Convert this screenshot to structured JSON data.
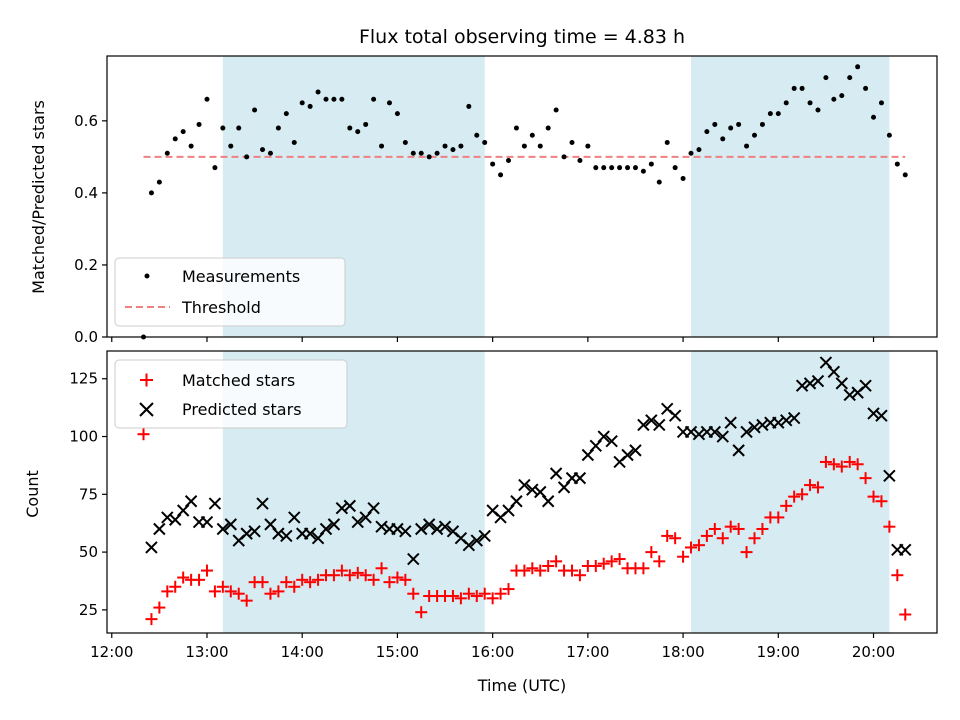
{
  "chart_data": {
    "title": "Flux total observing time = 4.83 h",
    "shaded_intervals": [
      [
        "13:10",
        "15:55"
      ],
      [
        "18:05",
        "20:10"
      ]
    ],
    "x_axis": {
      "label": "Time (UTC)",
      "ticks": [
        "12:00",
        "13:00",
        "14:00",
        "15:00",
        "16:00",
        "17:00",
        "18:00",
        "19:00",
        "20:00"
      ],
      "range": [
        "11:57",
        "20:40"
      ]
    },
    "panels": [
      {
        "type": "scatter",
        "ylabel": "Matched/Predicted stars",
        "ylim": [
          0,
          0.78
        ],
        "yticks": [
          "0.0",
          "0.2",
          "0.4",
          "0.6"
        ],
        "legend": {
          "placement": "lower-left",
          "entries": [
            "Measurements",
            "Threshold"
          ]
        },
        "threshold": {
          "name": "Threshold",
          "value": 0.5,
          "x_range": [
            "12:20",
            "20:20"
          ],
          "color": "#f08080"
        },
        "series": [
          {
            "name": "Measurements",
            "color": "#000000",
            "x": [
              "12:20",
              "12:25",
              "12:30",
              "12:35",
              "12:40",
              "12:45",
              "12:50",
              "12:55",
              "13:00",
              "13:05",
              "13:10",
              "13:15",
              "13:20",
              "13:25",
              "13:30",
              "13:35",
              "13:40",
              "13:45",
              "13:50",
              "13:55",
              "14:00",
              "14:05",
              "14:10",
              "14:15",
              "14:20",
              "14:25",
              "14:30",
              "14:35",
              "14:40",
              "14:45",
              "14:50",
              "14:55",
              "15:00",
              "15:05",
              "15:10",
              "15:15",
              "15:20",
              "15:25",
              "15:30",
              "15:35",
              "15:40",
              "15:45",
              "15:50",
              "15:55",
              "16:00",
              "16:05",
              "16:10",
              "16:15",
              "16:20",
              "16:25",
              "16:30",
              "16:35",
              "16:40",
              "16:45",
              "16:50",
              "16:55",
              "17:00",
              "17:05",
              "17:10",
              "17:15",
              "17:20",
              "17:25",
              "17:30",
              "17:35",
              "17:40",
              "17:45",
              "17:50",
              "17:55",
              "18:00",
              "18:05",
              "18:10",
              "18:15",
              "18:20",
              "18:25",
              "18:30",
              "18:35",
              "18:40",
              "18:45",
              "18:50",
              "18:55",
              "19:00",
              "19:05",
              "19:10",
              "19:15",
              "19:20",
              "19:25",
              "19:30",
              "19:35",
              "19:40",
              "19:45",
              "19:50",
              "19:55",
              "20:00",
              "20:05",
              "20:10",
              "20:15",
              "20:20"
            ],
            "y": [
              0.0,
              0.4,
              0.43,
              0.51,
              0.55,
              0.57,
              0.53,
              0.59,
              0.66,
              0.47,
              0.58,
              0.53,
              0.58,
              0.5,
              0.63,
              0.52,
              0.51,
              0.58,
              0.62,
              0.54,
              0.65,
              0.64,
              0.68,
              0.66,
              0.66,
              0.66,
              0.58,
              0.57,
              0.59,
              0.66,
              0.53,
              0.65,
              0.62,
              0.54,
              0.51,
              0.51,
              0.5,
              0.51,
              0.53,
              0.52,
              0.53,
              0.64,
              0.56,
              0.54,
              0.48,
              0.45,
              0.49,
              0.58,
              0.53,
              0.56,
              0.53,
              0.58,
              0.63,
              0.5,
              0.54,
              0.49,
              0.53,
              0.47,
              0.47,
              0.47,
              0.47,
              0.47,
              0.47,
              0.46,
              0.48,
              0.43,
              0.54,
              0.47,
              0.44,
              0.51,
              0.52,
              0.57,
              0.59,
              0.55,
              0.58,
              0.59,
              0.53,
              0.56,
              0.59,
              0.62,
              0.62,
              0.65,
              0.69,
              0.69,
              0.65,
              0.63,
              0.72,
              0.66,
              0.67,
              0.72,
              0.75,
              0.69,
              0.61,
              0.65,
              0.56,
              0.48,
              0.45
            ]
          }
        ]
      },
      {
        "type": "scatter",
        "ylabel": "Count",
        "ylim": [
          15,
          137
        ],
        "yticks": [
          "25",
          "50",
          "75",
          "100",
          "125"
        ],
        "legend": {
          "placement": "top-left",
          "entries": [
            "Matched stars",
            "Predicted stars"
          ]
        },
        "series": [
          {
            "name": "Matched stars",
            "color": "#ff0000",
            "marker": "plus",
            "x": [
              "12:20",
              "12:25",
              "12:30",
              "12:35",
              "12:40",
              "12:45",
              "12:50",
              "12:55",
              "13:00",
              "13:05",
              "13:10",
              "13:15",
              "13:20",
              "13:25",
              "13:30",
              "13:35",
              "13:40",
              "13:45",
              "13:50",
              "13:55",
              "14:00",
              "14:05",
              "14:10",
              "14:15",
              "14:20",
              "14:25",
              "14:30",
              "14:35",
              "14:40",
              "14:45",
              "14:50",
              "14:55",
              "15:00",
              "15:05",
              "15:10",
              "15:15",
              "15:20",
              "15:25",
              "15:30",
              "15:35",
              "15:40",
              "15:45",
              "15:50",
              "15:55",
              "16:00",
              "16:05",
              "16:10",
              "16:15",
              "16:20",
              "16:25",
              "16:30",
              "16:35",
              "16:40",
              "16:45",
              "16:50",
              "16:55",
              "17:00",
              "17:05",
              "17:10",
              "17:15",
              "17:20",
              "17:25",
              "17:30",
              "17:35",
              "17:40",
              "17:45",
              "17:50",
              "17:55",
              "18:00",
              "18:05",
              "18:10",
              "18:15",
              "18:20",
              "18:25",
              "18:30",
              "18:35",
              "18:40",
              "18:45",
              "18:50",
              "18:55",
              "19:00",
              "19:05",
              "19:10",
              "19:15",
              "19:20",
              "19:25",
              "19:30",
              "19:35",
              "19:40",
              "19:45",
              "19:50",
              "19:55",
              "20:00",
              "20:05",
              "20:10",
              "20:15",
              "20:20"
            ],
            "y": [
              101,
              21,
              26,
              33,
              35,
              39,
              38,
              38,
              42,
              33,
              35,
              33,
              32,
              29,
              37,
              37,
              32,
              33,
              37,
              35,
              38,
              37,
              38,
              40,
              40,
              42,
              40,
              41,
              40,
              38,
              43,
              37,
              39,
              38,
              32,
              24,
              31,
              31,
              31,
              31,
              30,
              32,
              31,
              32,
              30,
              32,
              34,
              42,
              42,
              43,
              42,
              44,
              46,
              42,
              42,
              40,
              44,
              44,
              45,
              46,
              47,
              43,
              43,
              43,
              50,
              46,
              57,
              56,
              48,
              52,
              53,
              57,
              60,
              56,
              61,
              60,
              50,
              56,
              60,
              65,
              65,
              70,
              74,
              75,
              79,
              78,
              89,
              88,
              87,
              89,
              88,
              82,
              74,
              72,
              61,
              40,
              23
            ]
          },
          {
            "name": "Predicted stars",
            "color": "#000000",
            "marker": "x",
            "x": [
              "12:25",
              "12:30",
              "12:35",
              "12:40",
              "12:45",
              "12:50",
              "12:55",
              "13:00",
              "13:05",
              "13:10",
              "13:15",
              "13:20",
              "13:25",
              "13:30",
              "13:35",
              "13:40",
              "13:45",
              "13:50",
              "13:55",
              "14:00",
              "14:05",
              "14:10",
              "14:15",
              "14:20",
              "14:25",
              "14:30",
              "14:35",
              "14:40",
              "14:45",
              "14:50",
              "14:55",
              "15:00",
              "15:05",
              "15:10",
              "15:15",
              "15:20",
              "15:25",
              "15:30",
              "15:35",
              "15:40",
              "15:45",
              "15:50",
              "15:55",
              "16:00",
              "16:05",
              "16:10",
              "16:15",
              "16:20",
              "16:25",
              "16:30",
              "16:35",
              "16:40",
              "16:45",
              "16:50",
              "16:55",
              "17:00",
              "17:05",
              "17:10",
              "17:15",
              "17:20",
              "17:25",
              "17:30",
              "17:35",
              "17:40",
              "17:45",
              "17:50",
              "17:55",
              "18:00",
              "18:05",
              "18:10",
              "18:15",
              "18:20",
              "18:25",
              "18:30",
              "18:35",
              "18:40",
              "18:45",
              "18:50",
              "18:55",
              "19:00",
              "19:05",
              "19:10",
              "19:15",
              "19:20",
              "19:25",
              "19:30",
              "19:35",
              "19:40",
              "19:45",
              "19:50",
              "19:55",
              "20:00",
              "20:05",
              "20:10",
              "20:15",
              "20:20"
            ],
            "y": [
              52,
              60,
              65,
              64,
              68,
              72,
              63,
              63,
              71,
              60,
              62,
              55,
              58,
              59,
              71,
              62,
              58,
              57,
              65,
              58,
              58,
              56,
              60,
              62,
              69,
              70,
              63,
              65,
              69,
              61,
              60,
              60,
              59,
              47,
              60,
              62,
              60,
              61,
              59,
              56,
              53,
              55,
              57,
              68,
              65,
              68,
              72,
              79,
              77,
              76,
              72,
              84,
              78,
              82,
              82,
              92,
              96,
              100,
              98,
              89,
              92,
              94,
              105,
              107,
              105,
              112,
              109,
              102,
              102,
              101,
              102,
              102,
              100,
              106,
              94,
              102,
              104,
              105,
              106,
              106,
              107,
              108,
              122,
              123,
              124,
              132,
              128,
              123,
              118,
              119,
              122,
              110,
              109,
              83,
              51,
              51
            ]
          }
        ]
      }
    ]
  }
}
